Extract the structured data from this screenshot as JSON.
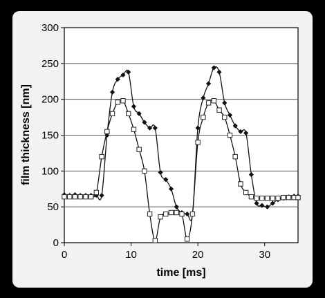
{
  "chart_data": {
    "type": "line",
    "title": "",
    "xlabel": "time [ms]",
    "ylabel": "film thickness [nm]",
    "xlim": [
      0,
      35
    ],
    "ylim": [
      0,
      300
    ],
    "xticks": [
      0,
      10,
      20,
      30
    ],
    "yticks": [
      0,
      50,
      100,
      150,
      200,
      250,
      300
    ],
    "grid": "horizontal",
    "legend": "none",
    "series": [
      {
        "marker": "filled-diamond",
        "color": "#111111",
        "x": [
          0,
          0.8,
          1.6,
          2.4,
          3.2,
          4.0,
          4.8,
          5.6,
          6.4,
          7.2,
          8.0,
          8.8,
          9.6,
          10.4,
          11.2,
          12.0,
          12.8,
          13.6,
          14.4,
          15.2,
          16.0,
          16.8,
          17.6,
          18.4,
          19.2,
          20.0,
          20.8,
          21.6,
          22.4,
          23.2,
          24.0,
          24.8,
          25.6,
          26.4,
          27.2,
          28.0,
          28.8,
          29.6,
          30.4,
          31.2,
          32.0,
          32.8,
          33.6,
          34.4,
          35.0
        ],
        "y": [
          67,
          66,
          67,
          66,
          66,
          66,
          66,
          66,
          150,
          210,
          228,
          234,
          238,
          190,
          180,
          168,
          160,
          160,
          98,
          88,
          75,
          50,
          42,
          40,
          40,
          160,
          202,
          222,
          244,
          238,
          195,
          178,
          163,
          155,
          153,
          95,
          55,
          52,
          50,
          55,
          60,
          62,
          64,
          65,
          65
        ]
      },
      {
        "marker": "open-square",
        "color": "#222222",
        "x": [
          0,
          0.8,
          1.6,
          2.4,
          3.2,
          4.0,
          4.8,
          5.6,
          6.4,
          7.2,
          8.0,
          8.8,
          9.6,
          10.4,
          11.2,
          12.0,
          12.8,
          13.6,
          14.4,
          15.2,
          16.0,
          16.8,
          17.6,
          18.4,
          19.2,
          20.0,
          20.8,
          21.6,
          22.4,
          23.2,
          24.0,
          24.8,
          25.6,
          26.4,
          27.2,
          28.0,
          28.8,
          29.6,
          30.4,
          31.2,
          32.0,
          32.8,
          33.6,
          34.4,
          35.0
        ],
        "y": [
          64,
          64,
          64,
          64,
          64,
          64,
          70,
          120,
          155,
          180,
          196,
          198,
          180,
          158,
          130,
          100,
          40,
          3,
          36,
          40,
          42,
          42,
          40,
          5,
          40,
          140,
          175,
          195,
          198,
          185,
          175,
          150,
          120,
          82,
          70,
          64,
          62,
          62,
          62,
          62,
          62,
          63,
          63,
          63,
          63
        ]
      }
    ]
  }
}
